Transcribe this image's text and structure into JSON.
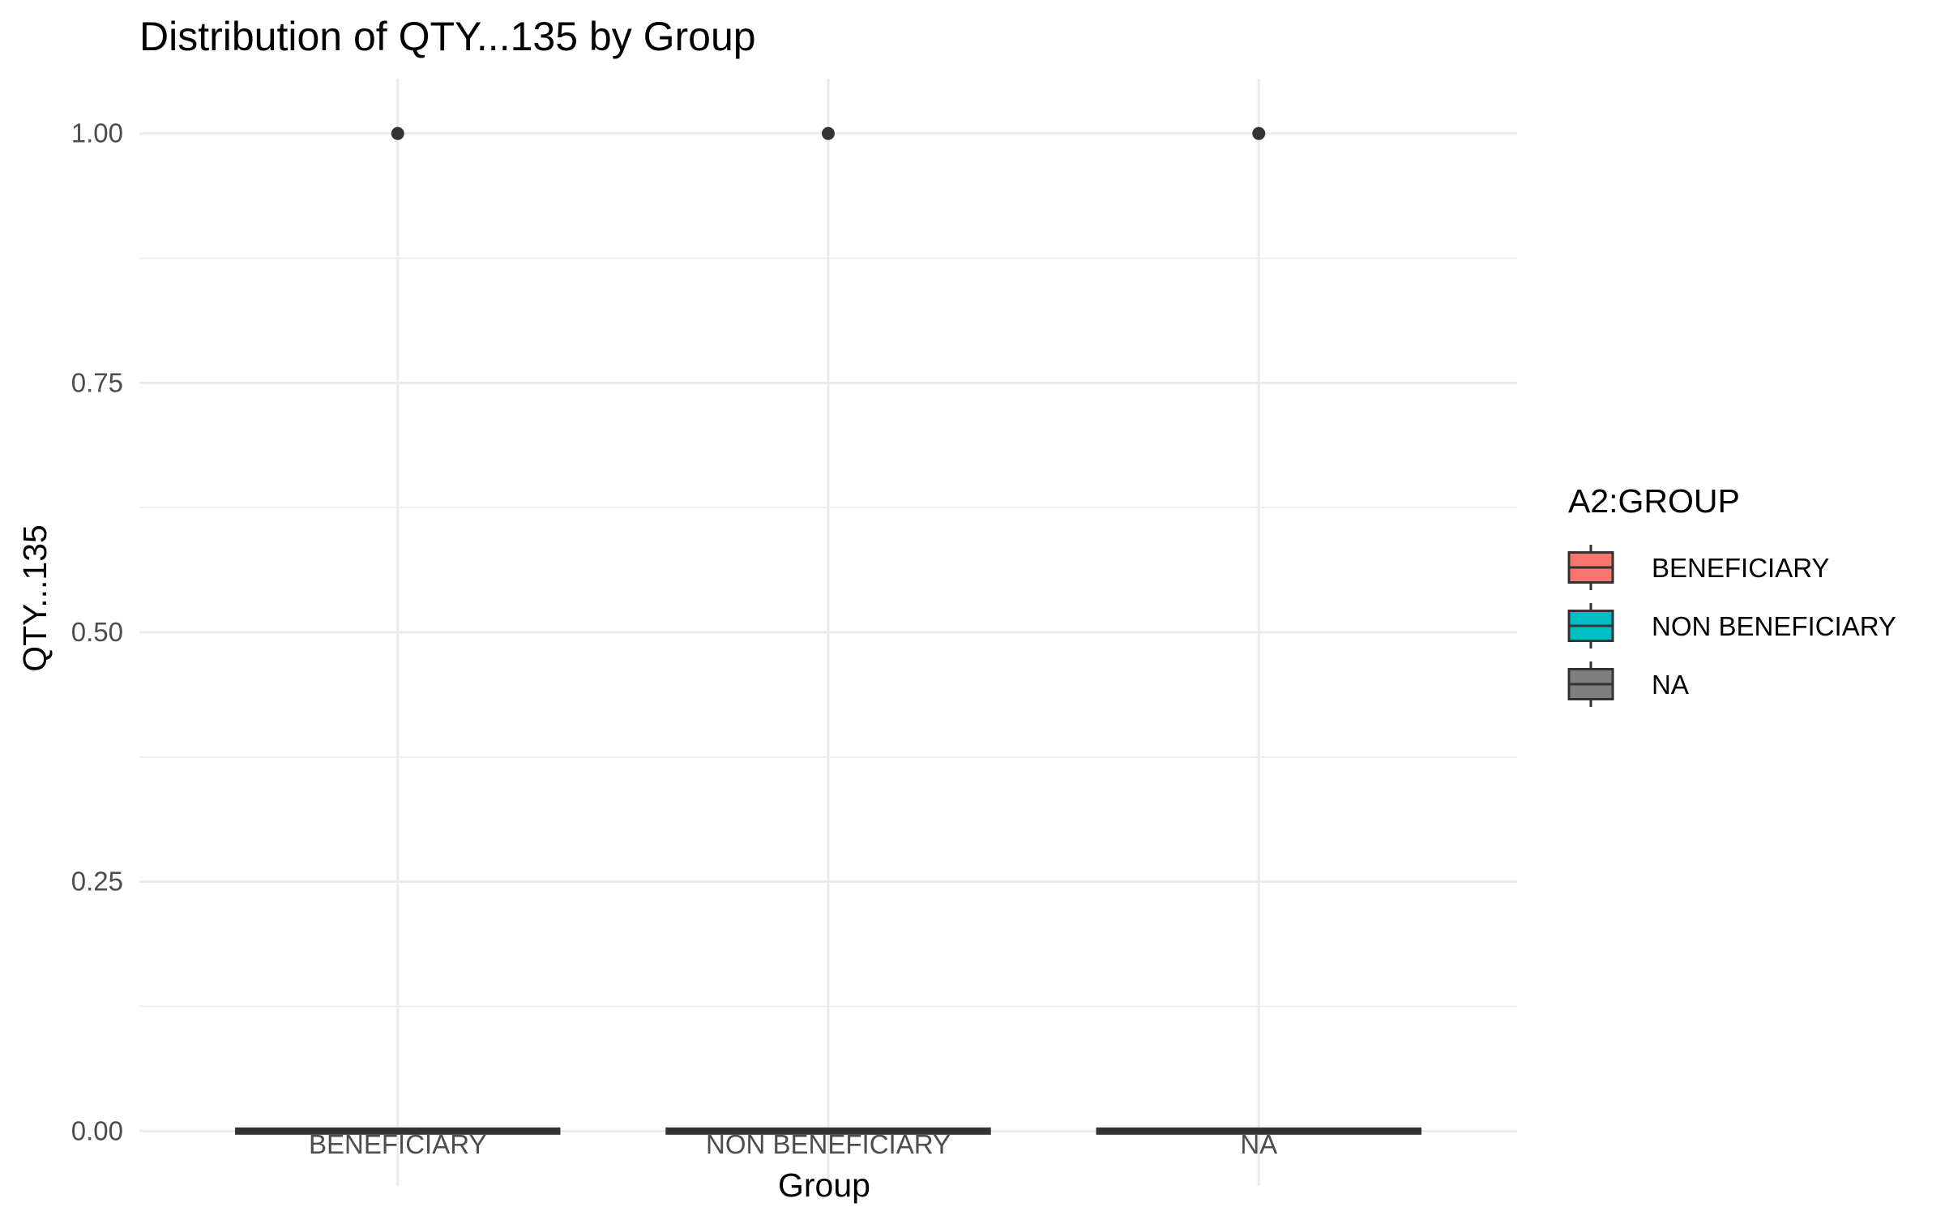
{
  "chart_data": {
    "type": "boxplot",
    "title": "Distribution of QTY...135 by Group",
    "xlabel": "Group",
    "ylabel": "QTY...135",
    "categories": [
      "BENEFICIARY",
      "NON BENEFICIARY",
      "NA"
    ],
    "ylim": [
      -0.055,
      1.055
    ],
    "y_ticks": [
      0.0,
      0.25,
      0.5,
      0.75,
      1.0
    ],
    "y_tick_labels": [
      "0.00",
      "0.25",
      "0.50",
      "0.75",
      "1.00"
    ],
    "grid": true,
    "series": [
      {
        "category": "BENEFICIARY",
        "color": "#F8766D",
        "min": 0,
        "q1": 0,
        "median": 0,
        "q3": 0,
        "max": 0,
        "outliers": [
          1
        ]
      },
      {
        "category": "NON BENEFICIARY",
        "color": "#00BFC4",
        "min": 0,
        "q1": 0,
        "median": 0,
        "q3": 0,
        "max": 0,
        "outliers": [
          1
        ]
      },
      {
        "category": "NA",
        "color": "#7F7F7F",
        "min": 0,
        "q1": 0,
        "median": 0,
        "q3": 0,
        "max": 0,
        "outliers": [
          1
        ]
      }
    ],
    "legend": {
      "title": "A2:GROUP",
      "position": "right",
      "entries": [
        {
          "label": "BENEFICIARY",
          "color": "#F8766D"
        },
        {
          "label": "NON BENEFICIARY",
          "color": "#00BFC4"
        },
        {
          "label": "NA",
          "color": "#7F7F7F"
        }
      ]
    }
  }
}
